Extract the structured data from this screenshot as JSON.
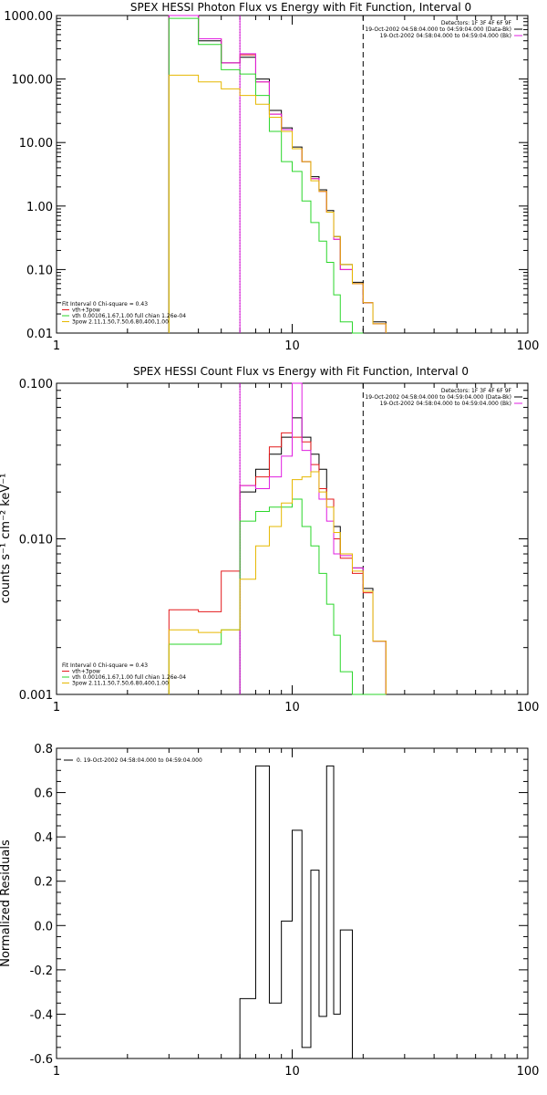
{
  "chart_data": [
    {
      "type": "line",
      "title": "SPEX HESSI Photon Flux vs Energy with Fit Function, Interval 0",
      "xscale": "log",
      "yscale": "log",
      "xlim": [
        1,
        100
      ],
      "ylim": [
        0.01,
        1000
      ],
      "xticks": [
        1,
        10,
        100
      ],
      "xtick_labels": [
        "1",
        "10",
        "100"
      ],
      "yticks": [
        0.01,
        0.1,
        1,
        10,
        100,
        1000
      ],
      "ytick_labels": [
        "0.01",
        "0.10",
        "1.00",
        "10.00",
        "100.00",
        "1000.00"
      ],
      "xlabel": "",
      "ylabel": "",
      "grid": false,
      "x_edges": [
        3,
        4,
        5,
        6,
        7,
        8,
        9,
        10,
        11,
        12,
        13,
        14,
        15,
        16,
        18,
        20,
        22,
        25
      ],
      "series": [
        {
          "name": "",
          "color": "#000000",
          "values": [
            1000,
            400,
            180,
            220,
            100,
            32,
            17,
            8.5,
            5.0,
            2.9,
            1.8,
            0.85,
            0.33,
            0.12,
            0.063,
            0.03,
            0.015
          ]
        },
        {
          "name": "",
          "color": "#e41a1c",
          "values": [
            1000,
            430,
            180,
            240,
            90,
            28,
            16,
            8.0,
            5.0,
            2.7,
            1.7,
            0.8,
            0.3,
            0.1,
            0.06,
            0.03,
            0.014
          ]
        },
        {
          "name": "",
          "color": "#e01ee0",
          "values": [
            1000,
            430,
            180,
            250,
            90,
            28,
            16,
            8.0,
            5.0,
            2.7,
            1.7,
            0.8,
            0.3,
            0.1,
            0.06,
            0.03,
            0.014
          ]
        },
        {
          "name": "",
          "color": "#2bd62b",
          "values": [
            900,
            350,
            140,
            120,
            55,
            15,
            5.0,
            3.5,
            1.2,
            0.55,
            0.28,
            0.13,
            0.04,
            0.015,
            0.008,
            null,
            null
          ]
        },
        {
          "name": "",
          "color": "#e6b800",
          "values": [
            115,
            90,
            70,
            55,
            40,
            25,
            15,
            8.0,
            5.0,
            2.5,
            1.7,
            0.8,
            0.33,
            0.12,
            0.06,
            0.03,
            0.014
          ]
        }
      ],
      "vlines": [
        {
          "x": 6,
          "color": "#000000",
          "style": "dotted"
        },
        {
          "x": 6,
          "color": "#e01ee0",
          "style": "solid"
        },
        {
          "x": 20,
          "color": "#000000",
          "style": "dashed"
        }
      ],
      "legend_top": [
        "Detectors: 1F 3F 4F 6F 9F",
        "19-Oct-2002 04:58:04.000 to 04:59:04.000 (Data-Bk)",
        "19-Oct-2002 04:58:04.000 to 04:59:04.000 (Bk)"
      ],
      "legend_top_colors": [
        "",
        "#000000",
        "#e01ee0"
      ],
      "legend_bottom": [
        "Fit Interval 0   Chi-square = 0.43",
        "vth+3pow",
        "vth 0.00106,1.67,1.00  full chian 1.26e-04",
        "3pow 2.11,1.50,7.50,6.80,400,1.00"
      ],
      "legend_bottom_colors": [
        "",
        "#e41a1c",
        "#2bd62b",
        "#e6b800"
      ]
    },
    {
      "type": "line",
      "title": "SPEX HESSI Count Flux vs Energy with Fit Function, Interval 0",
      "xscale": "log",
      "yscale": "log",
      "xlim": [
        1,
        100
      ],
      "ylim": [
        0.001,
        0.1
      ],
      "xticks": [
        1,
        10,
        100
      ],
      "xtick_labels": [
        "1",
        "10",
        "100"
      ],
      "yticks": [
        0.001,
        0.01,
        0.1
      ],
      "ytick_labels": [
        "0.001",
        "0.010",
        "0.100"
      ],
      "xlabel": "",
      "ylabel": "counts s⁻¹ cm⁻² keV⁻¹",
      "grid": false,
      "x_edges": [
        3,
        4,
        5,
        6,
        7,
        8,
        9,
        10,
        11,
        12,
        13,
        14,
        15,
        16,
        18,
        20,
        22,
        25
      ],
      "series": [
        {
          "name": "",
          "color": "#000000",
          "values": [
            null,
            null,
            null,
            0.02,
            0.028,
            0.035,
            0.045,
            0.06,
            0.045,
            0.035,
            0.028,
            0.018,
            0.012,
            0.008,
            0.0065,
            0.0048,
            0.0022
          ]
        },
        {
          "name": "",
          "color": "#e41a1c",
          "values": [
            0.0035,
            0.0034,
            0.0062,
            0.022,
            0.025,
            0.039,
            0.048,
            0.045,
            0.042,
            0.03,
            0.021,
            0.018,
            0.01,
            0.0075,
            0.006,
            0.0045,
            0.0022
          ]
        },
        {
          "name": "",
          "color": "#e01ee0",
          "values": [
            null,
            null,
            null,
            0.022,
            0.021,
            0.025,
            0.034,
            0.1,
            0.037,
            0.027,
            0.018,
            0.013,
            0.008,
            0.0078,
            0.0065,
            0.0046,
            0.0022
          ]
        },
        {
          "name": "",
          "color": "#2bd62b",
          "values": [
            0.0021,
            0.0021,
            0.0026,
            0.013,
            0.015,
            0.016,
            0.016,
            0.018,
            0.012,
            0.009,
            0.006,
            0.0038,
            0.0024,
            0.0014,
            0.001,
            0.001,
            0.001
          ]
        },
        {
          "name": "",
          "color": "#e6b800",
          "values": [
            0.0026,
            0.0025,
            0.0026,
            0.0055,
            0.009,
            0.012,
            0.017,
            0.024,
            0.025,
            0.027,
            0.02,
            0.016,
            0.011,
            0.008,
            0.0062,
            0.0046,
            0.0022
          ]
        }
      ],
      "vlines": [
        {
          "x": 6,
          "color": "#000000",
          "style": "dotted"
        },
        {
          "x": 6,
          "color": "#e01ee0",
          "style": "solid"
        },
        {
          "x": 20,
          "color": "#000000",
          "style": "dashed"
        }
      ],
      "legend_top": [
        "Detectors: 1F 3F 4F 6F 9F",
        "19-Oct-2002 04:58:04.000 to 04:59:04.000 (Data-Bk)",
        "19-Oct-2002 04:58:04.000 to 04:59:04.000 (Bk)"
      ],
      "legend_top_colors": [
        "",
        "#000000",
        "#e01ee0"
      ],
      "legend_bottom": [
        "Fit Interval 0   Chi-square = 0.43",
        "vth+3pow",
        "vth 0.00106,1.67,1.00  full chian 1.26e-04",
        "3pow 2.11,1.50,7.50,6.80,400,1.00"
      ],
      "legend_bottom_colors": [
        "",
        "#e41a1c",
        "#2bd62b",
        "#e6b800"
      ]
    },
    {
      "type": "line",
      "title": "",
      "xscale": "log",
      "yscale": "linear",
      "xlim": [
        1,
        100
      ],
      "ylim": [
        -0.6,
        0.8
      ],
      "xticks": [
        1,
        10,
        100
      ],
      "xtick_labels": [
        "1",
        "10",
        "100"
      ],
      "yticks": [
        -0.6,
        -0.4,
        -0.2,
        0.0,
        0.2,
        0.4,
        0.6,
        0.8
      ],
      "ytick_labels": [
        "-0.6",
        "-0.4",
        "-0.2",
        "0.0",
        "0.2",
        "0.4",
        "0.6",
        "0.8"
      ],
      "xlabel": "",
      "ylabel": "Normalized Residuals",
      "grid": false,
      "x_edges": [
        6,
        7,
        8,
        9,
        10,
        11,
        12,
        13,
        14,
        15,
        16,
        18,
        20
      ],
      "series": [
        {
          "name": "0. 19-Oct-2002 04:58:04.000 to 04:59:04.000",
          "color": "#000000",
          "values": [
            -0.33,
            0.72,
            -0.35,
            0.02,
            0.43,
            -0.55,
            0.25,
            -0.41,
            0.72,
            -0.4,
            -0.02,
            -0.6
          ]
        }
      ],
      "vlines": [],
      "legend_top": [
        "0. 19-Oct-2002 04:58:04.000 to 04:59:04.000"
      ],
      "legend_top_colors": [
        "#000000"
      ],
      "legend_bottom": [],
      "legend_bottom_colors": []
    }
  ]
}
